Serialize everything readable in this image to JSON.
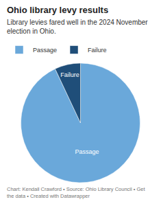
{
  "chart_data": {
    "type": "pie",
    "title": "Ohio library levy results",
    "subtitle": "Library levies fared well in the 2024 November election in Ohio.",
    "caption": "Chart: Kendall Crawford • Source: Ohio Library Council • Get the data • Created with Datawrapper",
    "categories": [
      "Passage",
      "Failure"
    ],
    "values": [
      93,
      7
    ],
    "colors": [
      "#6aa8da",
      "#1f4e79"
    ],
    "legend": "top-left"
  }
}
